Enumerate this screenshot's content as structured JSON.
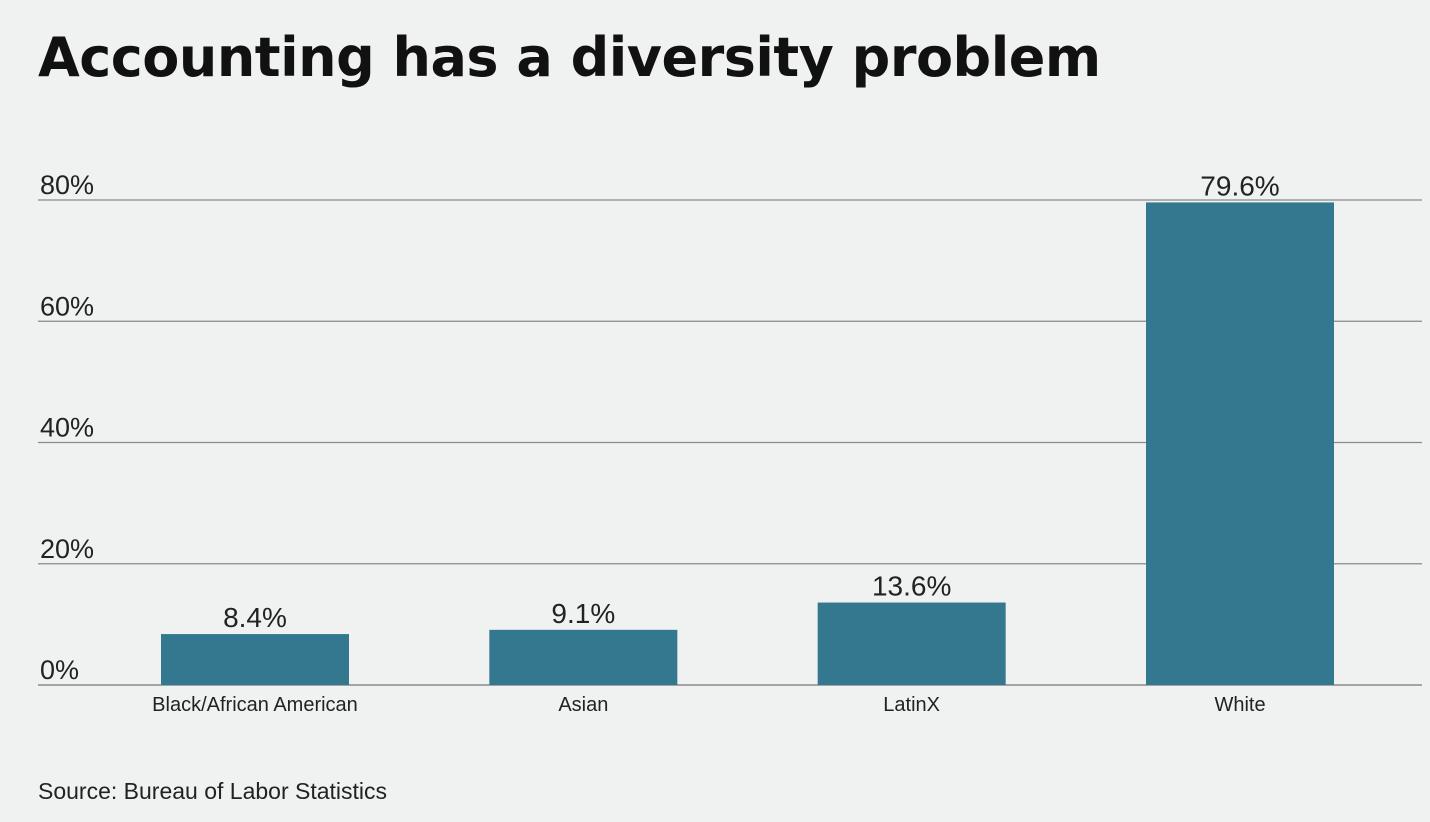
{
  "chart_data": {
    "type": "bar",
    "title": "Accounting has a diversity problem",
    "categories": [
      "Black/African American",
      "Asian",
      "LatinX",
      "White"
    ],
    "values": [
      8.4,
      9.1,
      13.6,
      79.6
    ],
    "data_labels": [
      "8.4%",
      "9.1%",
      "13.6%",
      "79.6%"
    ],
    "yticks": [
      0,
      20,
      40,
      60,
      80
    ],
    "ytick_labels": [
      "0%",
      "20%",
      "40%",
      "60%",
      "80%"
    ],
    "ylim": [
      0,
      80
    ],
    "xlabel": "",
    "ylabel": "",
    "grid": true,
    "legend": "none",
    "bar_color": "#33788f",
    "gridline_color": "#8a8a8a",
    "source": "Source: Bureau of Labor Statistics"
  }
}
